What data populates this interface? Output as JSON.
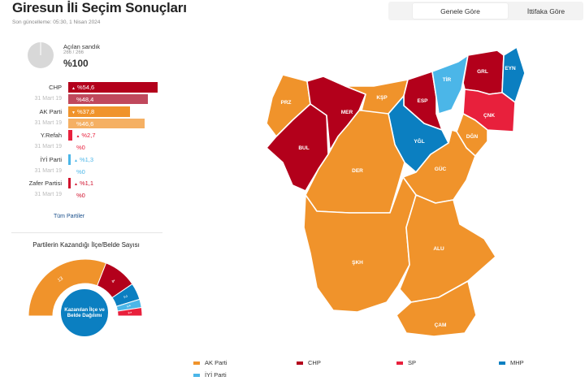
{
  "header": {
    "title": "Giresun İli Seçim Sonuçları",
    "updated": "Son güncelleme: 05:30, 1 Nisan 2024"
  },
  "tabs": [
    {
      "label": "Genele Göre",
      "active": true
    },
    {
      "label": "İttifaka Göre",
      "active": false
    }
  ],
  "ballot": {
    "label": "Açılan sandık",
    "count": "266 / 266",
    "percent": "%100",
    "opened_fraction": 1.0
  },
  "parties": [
    {
      "name": "CHP",
      "current": "%54,6",
      "current_value": 54.6,
      "prev_label": "31 Mart 19",
      "prev": "%48,4",
      "prev_value": 48.4,
      "color": "#b3001b",
      "prev_color": "#c0485c",
      "trend": "up"
    },
    {
      "name": "AK Parti",
      "current": "%37,8",
      "current_value": 37.8,
      "prev_label": "31 Mart 19",
      "prev": "%46,6",
      "prev_value": 46.6,
      "color": "#f0932b",
      "prev_color": "#f5b063",
      "trend": "down"
    },
    {
      "name": "Y.Refah",
      "current": "%2,7",
      "current_value": 2.7,
      "prev_label": "31 Mart 19",
      "prev": "%0",
      "prev_value": 0,
      "color": "#e8203c",
      "prev_color": "#e8203c",
      "trend": "up"
    },
    {
      "name": "İYİ Parti",
      "current": "%1,3",
      "current_value": 1.3,
      "prev_label": "31 Mart 19",
      "prev": "%0",
      "prev_value": 0,
      "color": "#4bb6e8",
      "prev_color": "#4bb6e8",
      "trend": "up"
    },
    {
      "name": "Zafer Partisi",
      "current": "%1,1",
      "current_value": 1.1,
      "prev_label": "31 Mart 19",
      "prev": "%0",
      "prev_value": 0,
      "color": "#d0102c",
      "prev_color": "#d0102c",
      "trend": "up"
    }
  ],
  "all_parties_link": "Tüm Partiler",
  "seats": {
    "title": "Partilerin Kazandığı İlçe/Belde Sayısı",
    "center_label_line1": "Kazanılan İlçe ve",
    "center_label_line2": "Belde Dağılımı",
    "segments": [
      {
        "party": "AK Parti",
        "value": 13,
        "label": "13",
        "color": "#f0932b"
      },
      {
        "party": "CHP",
        "value": 4,
        "label": "4",
        "color": "#b3001b"
      },
      {
        "party": "MHP",
        "value": 2,
        "label": "2",
        "color": "#0b7fc1"
      },
      {
        "party": "İYİ Parti",
        "value": 1,
        "label": "1",
        "color": "#4bb6e8"
      },
      {
        "party": "SP",
        "value": 1,
        "label": "1",
        "color": "#e8203c"
      }
    ]
  },
  "map": {
    "districts": [
      {
        "code": "PRZ",
        "winner": "AK Parti",
        "color": "#f0932b"
      },
      {
        "code": "BUL",
        "winner": "CHP",
        "color": "#b3001b"
      },
      {
        "code": "MER",
        "winner": "CHP",
        "color": "#b3001b"
      },
      {
        "code": "KŞP",
        "winner": "AK Parti",
        "color": "#f0932b"
      },
      {
        "code": "ESP",
        "winner": "CHP",
        "color": "#b3001b"
      },
      {
        "code": "TİR",
        "winner": "İYİ Parti",
        "color": "#4bb6e8"
      },
      {
        "code": "GRL",
        "winner": "CHP",
        "color": "#b3001b"
      },
      {
        "code": "EYN",
        "winner": "MHP",
        "color": "#0b7fc1"
      },
      {
        "code": "ÇNK",
        "winner": "SP",
        "color": "#e8203c"
      },
      {
        "code": "DĞN",
        "winner": "AK Parti",
        "color": "#f0932b"
      },
      {
        "code": "YĞL",
        "winner": "MHP",
        "color": "#0b7fc1"
      },
      {
        "code": "DER",
        "winner": "AK Parti",
        "color": "#f0932b"
      },
      {
        "code": "GÜC",
        "winner": "AK Parti",
        "color": "#f0932b"
      },
      {
        "code": "ŞKH",
        "winner": "AK Parti",
        "color": "#f0932b"
      },
      {
        "code": "ALU",
        "winner": "AK Parti",
        "color": "#f0932b"
      },
      {
        "code": "ÇAM",
        "winner": "AK Parti",
        "color": "#f0932b"
      }
    ]
  },
  "legend": [
    {
      "label": "AK Parti",
      "color": "#f0932b"
    },
    {
      "label": "CHP",
      "color": "#b3001b"
    },
    {
      "label": "SP",
      "color": "#e8203c"
    },
    {
      "label": "MHP",
      "color": "#0b7fc1"
    },
    {
      "label": "İYİ Parti",
      "color": "#4bb6e8"
    }
  ]
}
